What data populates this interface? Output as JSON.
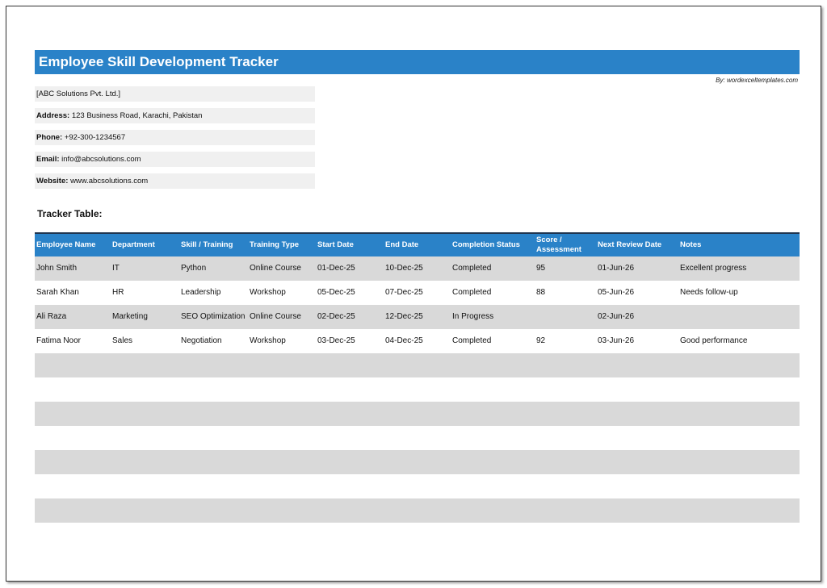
{
  "header": {
    "title": "Employee Skill Development Tracker",
    "byline": "By: wordexceltemplates.com"
  },
  "company": {
    "name": "[ABC Solutions Pvt. Ltd.]",
    "fields": [
      {
        "label": "Address:",
        "value": "123 Business Road, Karachi, Pakistan"
      },
      {
        "label": "Phone:",
        "value": "+92-300-1234567"
      },
      {
        "label": "Email:",
        "value": "info@abcsolutions.com"
      },
      {
        "label": "Website:",
        "value": "www.abcsolutions.com"
      }
    ]
  },
  "table": {
    "title": "Tracker Table:",
    "headers": [
      "Employee Name",
      "Department",
      "Skill / Training",
      "Training Type",
      "Start Date",
      "End Date",
      "Completion Status",
      "Score / Assessment",
      "Next Review Date",
      "Notes"
    ],
    "rows": [
      [
        "John Smith",
        "IT",
        "Python",
        "Online Course",
        "01-Dec-25",
        "10-Dec-25",
        "Completed",
        "95",
        "01-Jun-26",
        "Excellent progress"
      ],
      [
        "Sarah Khan",
        "HR",
        "Leadership",
        "Workshop",
        "05-Dec-25",
        "07-Dec-25",
        "Completed",
        "88",
        "05-Jun-26",
        "Needs follow-up"
      ],
      [
        "Ali Raza",
        "Marketing",
        "SEO Optimization",
        "Online Course",
        "02-Dec-25",
        "12-Dec-25",
        "In Progress",
        null,
        "02-Jun-26",
        null
      ],
      [
        "Fatima Noor",
        "Sales",
        "Negotiation",
        "Workshop",
        "03-Dec-25",
        "04-Dec-25",
        "Completed",
        "92",
        "03-Jun-26",
        "Good performance"
      ]
    ]
  }
}
